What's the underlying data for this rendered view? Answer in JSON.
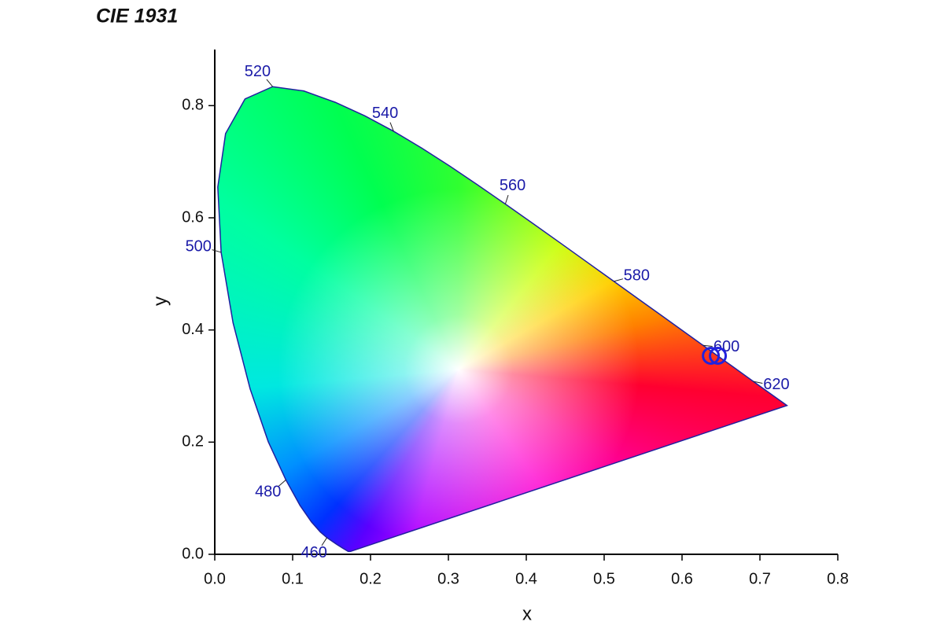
{
  "chart_data": {
    "type": "scatter",
    "title": "CIE 1931",
    "xlabel": "x",
    "ylabel": "y",
    "xlim": [
      0,
      0.8
    ],
    "ylim": [
      0,
      0.9
    ],
    "xticks": [
      {
        "value": 0,
        "label": "0.0"
      },
      0.1,
      0.2,
      0.3,
      0.4,
      0.5,
      0.6,
      0.7,
      0.8
    ],
    "yticks": [
      {
        "value": 0,
        "label": "0.0"
      },
      0.2,
      0.4,
      0.6,
      0.8
    ],
    "locus": {
      "color": "#2020a0",
      "x": [
        0.1741,
        0.1714,
        0.1644,
        0.1566,
        0.144,
        0.1355,
        0.1241,
        0.1096,
        0.0913,
        0.0687,
        0.0454,
        0.0235,
        0.0082,
        0.0039,
        0.0139,
        0.0389,
        0.0743,
        0.1142,
        0.1547,
        0.1929,
        0.2296,
        0.2658,
        0.3016,
        0.3373,
        0.3731,
        0.4087,
        0.4441,
        0.4788,
        0.5125,
        0.5448,
        0.5752,
        0.6029,
        0.627,
        0.6482,
        0.6658,
        0.6801,
        0.6915,
        0.7079,
        0.719,
        0.73,
        0.7347
      ],
      "y": [
        0.005,
        0.0051,
        0.0109,
        0.0177,
        0.0297,
        0.0399,
        0.0578,
        0.0868,
        0.1327,
        0.2007,
        0.295,
        0.4127,
        0.5384,
        0.6548,
        0.7502,
        0.812,
        0.8338,
        0.8262,
        0.8059,
        0.7816,
        0.7543,
        0.7243,
        0.6923,
        0.6589,
        0.6245,
        0.5896,
        0.5547,
        0.5202,
        0.4866,
        0.4544,
        0.4242,
        0.3965,
        0.3725,
        0.3514,
        0.334,
        0.3197,
        0.3083,
        0.292,
        0.2809,
        0.27,
        0.2653
      ]
    },
    "wavelength_labels": [
      {
        "text": "460",
        "x": 0.144,
        "y": 0.0297
      },
      {
        "text": "480",
        "x": 0.0913,
        "y": 0.1327
      },
      {
        "text": "500",
        "x": 0.0082,
        "y": 0.5384
      },
      {
        "text": "520",
        "x": 0.0743,
        "y": 0.8338
      },
      {
        "text": "540",
        "x": 0.2296,
        "y": 0.7543
      },
      {
        "text": "560",
        "x": 0.3731,
        "y": 0.6245
      },
      {
        "text": "580",
        "x": 0.5125,
        "y": 0.4866
      },
      {
        "text": "600",
        "x": 0.627,
        "y": 0.3725
      },
      {
        "text": "620",
        "x": 0.6915,
        "y": 0.3083
      }
    ],
    "series": [
      {
        "color": "#2222dd",
        "x": [
          0.637,
          0.646
        ],
        "y": [
          0.354,
          0.354
        ]
      }
    ]
  }
}
